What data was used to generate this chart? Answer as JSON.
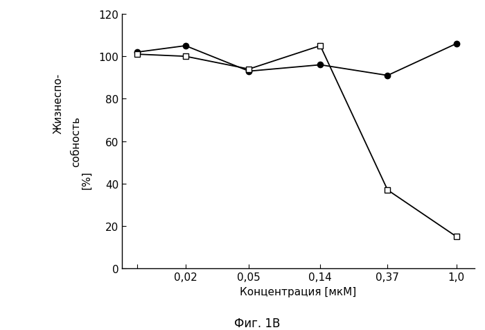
{
  "x_values": [
    0.01,
    0.02,
    0.05,
    0.14,
    0.37,
    1.0
  ],
  "x_tick_positions": [
    0.01,
    0.02,
    0.05,
    0.14,
    0.37,
    1.0
  ],
  "x_tick_labels": [
    "",
    "0,02",
    "0,05",
    "0,14",
    "0,37",
    "1,0"
  ],
  "line1_y": [
    102,
    105,
    93,
    96,
    91,
    106
  ],
  "line2_y": [
    101,
    100,
    94,
    105,
    37,
    15
  ],
  "line1_color": "#000000",
  "line2_color": "#000000",
  "ylabel_line1": "Жизнеспо-",
  "ylabel_line2": "собность",
  "ylabel_line3": "[%]",
  "xlabel": "Концентрация [мкМ]",
  "caption": "Фиг. 1В",
  "ylim": [
    0,
    120
  ],
  "yticks": [
    0,
    20,
    40,
    60,
    80,
    100,
    120
  ],
  "background_color": "#ffffff",
  "axis_fontsize": 11,
  "tick_fontsize": 11,
  "caption_fontsize": 12
}
